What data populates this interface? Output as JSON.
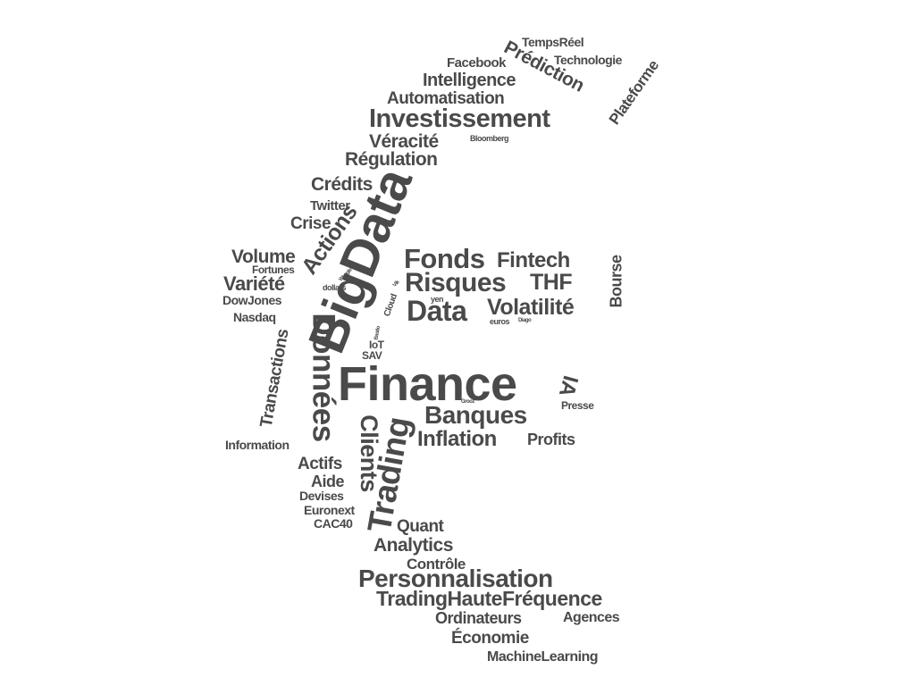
{
  "colors": {
    "text": "#4a4a4a",
    "background": "#ffffff"
  },
  "words": [
    {
      "id": "w1",
      "text": "TempsRéel"
    },
    {
      "id": "w2",
      "text": "Prédiction"
    },
    {
      "id": "w3",
      "text": "Facebook"
    },
    {
      "id": "w4",
      "text": "Technologie"
    },
    {
      "id": "w5",
      "text": "Plateforme"
    },
    {
      "id": "w6",
      "text": "Intelligence"
    },
    {
      "id": "w7",
      "text": "Automatisation"
    },
    {
      "id": "w8",
      "text": "Investissement"
    },
    {
      "id": "w9",
      "text": "Véracité"
    },
    {
      "id": "w10",
      "text": "Bloomberg"
    },
    {
      "id": "w11",
      "text": "Régulation"
    },
    {
      "id": "w12",
      "text": "Crédits"
    },
    {
      "id": "w13",
      "text": "BigData"
    },
    {
      "id": "w14",
      "text": "Twitter"
    },
    {
      "id": "w15",
      "text": "Actions"
    },
    {
      "id": "w16",
      "text": "Crise"
    },
    {
      "id": "w17",
      "text": "Volume"
    },
    {
      "id": "w18",
      "text": "Fortunes"
    },
    {
      "id": "w19",
      "text": "Fonds"
    },
    {
      "id": "w20",
      "text": "Fintech"
    },
    {
      "id": "w21",
      "text": "Bourse"
    },
    {
      "id": "w22",
      "text": "Variété"
    },
    {
      "id": "w23",
      "text": "dollars"
    },
    {
      "id": "w24",
      "text": "Risques"
    },
    {
      "id": "w25",
      "text": "THF"
    },
    {
      "id": "w26",
      "text": "DowJones"
    },
    {
      "id": "w27",
      "text": "Data"
    },
    {
      "id": "w28",
      "text": "Volatilité"
    },
    {
      "id": "w29",
      "text": "Nasdaq"
    },
    {
      "id": "w30",
      "text": "Données"
    },
    {
      "id": "w31",
      "text": "Cloud"
    },
    {
      "id": "w32",
      "text": "yen"
    },
    {
      "id": "w33",
      "text": "euros"
    },
    {
      "id": "w34",
      "text": "Diago"
    },
    {
      "id": "w35",
      "text": "Transactions"
    },
    {
      "id": "w36",
      "text": "IoT"
    },
    {
      "id": "w37",
      "text": "SAV"
    },
    {
      "id": "w38",
      "text": "Finance"
    },
    {
      "id": "w39",
      "text": "IA"
    },
    {
      "id": "w40",
      "text": "Clients"
    },
    {
      "id": "w41",
      "text": "Banques"
    },
    {
      "id": "w42",
      "text": "Presse"
    },
    {
      "id": "w43",
      "text": "Trading"
    },
    {
      "id": "w44",
      "text": "Inflation"
    },
    {
      "id": "w45",
      "text": "Profits"
    },
    {
      "id": "w46",
      "text": "Information"
    },
    {
      "id": "w47",
      "text": "Actifs"
    },
    {
      "id": "w48",
      "text": "Aide"
    },
    {
      "id": "w49",
      "text": "Devises"
    },
    {
      "id": "w50",
      "text": "Euronext"
    },
    {
      "id": "w51",
      "text": "CAC40"
    },
    {
      "id": "w52",
      "text": "Quant"
    },
    {
      "id": "w53",
      "text": "Analytics"
    },
    {
      "id": "w54",
      "text": "Contrôle"
    },
    {
      "id": "w55",
      "text": "Personnalisation"
    },
    {
      "id": "w56",
      "text": "TradingHauteFréquence"
    },
    {
      "id": "w57",
      "text": "Ordinateurs"
    },
    {
      "id": "w58",
      "text": "Agences"
    },
    {
      "id": "w59",
      "text": "Économie"
    },
    {
      "id": "w60",
      "text": "MachineLearning"
    },
    {
      "id": "w61",
      "text": "Weegle"
    },
    {
      "id": "w62",
      "text": "Vik"
    },
    {
      "id": "w63",
      "text": "Grooz"
    },
    {
      "id": "w64",
      "text": "Bastio"
    }
  ]
}
